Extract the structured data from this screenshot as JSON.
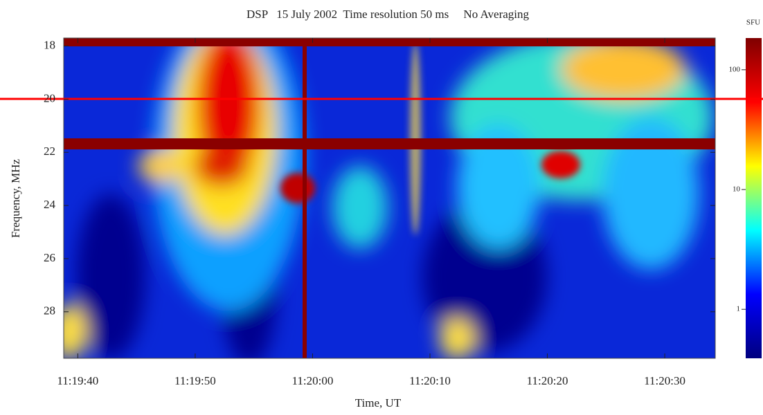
{
  "chart_data": {
    "type": "spectrogram",
    "title": "DSP   15 July 2002  Time resolution 50 ms     No Averaging",
    "x_label": "Time, UT",
    "y_label": "Frequency, MHz",
    "xlim": [
      40778.8,
      40834.3
    ],
    "xticks": [
      {
        "value": 40780,
        "label": "11:19:40"
      },
      {
        "value": 40790,
        "label": "11:19:50"
      },
      {
        "value": 40800,
        "label": "11:20:00"
      },
      {
        "value": 40810,
        "label": "11:20:10"
      },
      {
        "value": 40820,
        "label": "11:20:20"
      },
      {
        "value": 40830,
        "label": "11:20:30"
      }
    ],
    "ylim": [
      29.75,
      17.7
    ],
    "yticks": [
      18,
      20,
      22,
      24,
      26,
      28
    ],
    "colorbar": {
      "label": "SFU",
      "log_scale": true,
      "lim": [
        0.39,
        184
      ],
      "ticks": [
        1,
        10,
        100
      ],
      "colors": [
        "#00007f",
        "#0000ff",
        "#00ffff",
        "#ffff00",
        "#ff0000",
        "#7f0000"
      ]
    }
  }
}
